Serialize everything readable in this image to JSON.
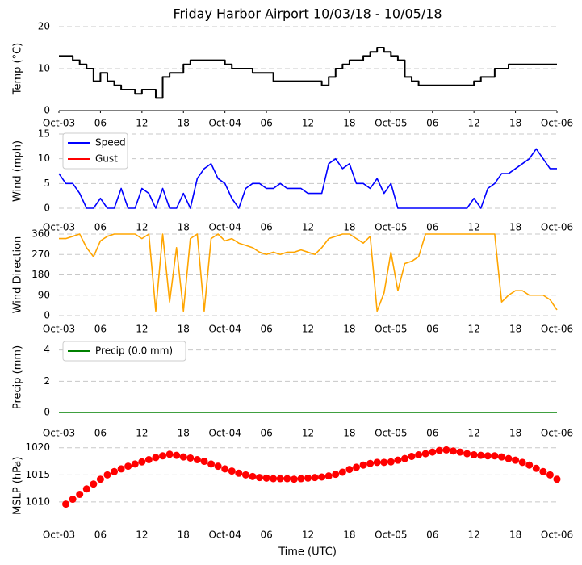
{
  "chart_data": [
    {
      "type": "line",
      "title": "Friday Harbor Airport 10/03/18 - 10/05/18",
      "ylabel": "Temp (°C)",
      "step": true,
      "x": [
        0,
        1,
        2,
        3,
        4,
        5,
        6,
        7,
        8,
        9,
        10,
        11,
        12,
        13,
        14,
        15,
        16,
        17,
        18,
        19,
        20,
        21,
        22,
        23,
        24,
        25,
        26,
        27,
        28,
        29,
        30,
        31,
        32,
        33,
        34,
        35,
        36,
        37,
        38,
        39,
        40,
        41,
        42,
        43,
        44,
        45,
        46,
        47,
        48,
        49,
        50,
        51,
        52,
        53,
        54,
        55,
        56,
        57,
        58,
        59,
        60,
        61,
        62,
        63,
        64,
        65,
        66,
        67,
        68,
        69,
        70,
        71,
        72
      ],
      "series": [
        {
          "name": "Temp",
          "color": "#000000",
          "values": [
            13,
            13,
            12,
            11,
            10,
            7,
            9,
            7,
            6,
            5,
            5,
            4,
            5,
            5,
            3,
            8,
            9,
            9,
            11,
            12,
            12,
            12,
            12,
            12,
            11,
            10,
            10,
            10,
            9,
            9,
            9,
            7,
            7,
            7,
            7,
            7,
            7,
            7,
            6,
            8,
            10,
            11,
            12,
            12,
            13,
            14,
            15,
            14,
            13,
            12,
            8,
            7,
            6,
            6,
            6,
            6,
            6,
            6,
            6,
            6,
            7,
            8,
            8,
            10,
            10,
            11,
            11,
            11,
            11,
            11,
            11,
            11,
            11
          ]
        }
      ],
      "xlim": [
        0,
        72
      ],
      "xticks": [
        {
          "value": 0,
          "label": "Oct-03"
        },
        {
          "value": 6,
          "label": "06"
        },
        {
          "value": 12,
          "label": "12"
        },
        {
          "value": 18,
          "label": "18"
        },
        {
          "value": 24,
          "label": "Oct-04"
        },
        {
          "value": 30,
          "label": "06"
        },
        {
          "value": 36,
          "label": "12"
        },
        {
          "value": 42,
          "label": "18"
        },
        {
          "value": 48,
          "label": "Oct-05"
        },
        {
          "value": 54,
          "label": "06"
        },
        {
          "value": 60,
          "label": "12"
        },
        {
          "value": 66,
          "label": "18"
        },
        {
          "value": 72,
          "label": "Oct-06"
        }
      ],
      "ylim": [
        0,
        20
      ],
      "yticks": [
        0,
        10,
        20
      ],
      "grid": true
    },
    {
      "type": "line",
      "ylabel": "Wind (mph)",
      "legend": "upper left",
      "x": [
        0,
        1,
        2,
        3,
        4,
        5,
        6,
        7,
        8,
        9,
        10,
        11,
        12,
        13,
        14,
        15,
        16,
        17,
        18,
        19,
        20,
        21,
        22,
        23,
        24,
        25,
        26,
        27,
        28,
        29,
        30,
        31,
        32,
        33,
        34,
        35,
        36,
        37,
        38,
        39,
        40,
        41,
        42,
        43,
        44,
        45,
        46,
        47,
        48,
        49,
        50,
        51,
        52,
        53,
        54,
        55,
        56,
        57,
        58,
        59,
        60,
        61,
        62,
        63,
        64,
        65,
        66,
        67,
        68,
        69,
        70,
        71,
        72
      ],
      "series": [
        {
          "name": "Speed",
          "color": "#0000ff",
          "values": [
            7,
            5,
            5,
            3,
            0,
            0,
            2,
            0,
            0,
            4,
            0,
            0,
            4,
            3,
            0,
            4,
            0,
            0,
            3,
            0,
            6,
            8,
            9,
            6,
            5,
            2,
            0,
            4,
            5,
            5,
            4,
            4,
            5,
            4,
            4,
            4,
            3,
            3,
            3,
            9,
            10,
            8,
            9,
            5,
            5,
            4,
            6,
            3,
            5,
            0,
            0,
            0,
            0,
            0,
            0,
            0,
            0,
            0,
            0,
            0,
            2,
            0,
            4,
            5,
            7,
            7,
            8,
            9,
            10,
            12,
            10,
            8,
            8
          ]
        },
        {
          "name": "Gust",
          "color": "#ff0000",
          "values": [
            null,
            null,
            null,
            null,
            null,
            null,
            null,
            null,
            null,
            null,
            null,
            null,
            null,
            null,
            null,
            null,
            null,
            null,
            null,
            null,
            null,
            null,
            null,
            null,
            null,
            null,
            null,
            null,
            null,
            null,
            null,
            null,
            null,
            null,
            null,
            null,
            null,
            null,
            null,
            null,
            null,
            null,
            null,
            null,
            null,
            null,
            null,
            null,
            null,
            null,
            null,
            null,
            null,
            null,
            null,
            null,
            null,
            null,
            null,
            null,
            null,
            null,
            null,
            null,
            null,
            null,
            null,
            null,
            null,
            null,
            null,
            null,
            null
          ]
        }
      ],
      "xlim": [
        0,
        72
      ],
      "xticks": [
        {
          "value": 0,
          "label": "Oct-03"
        },
        {
          "value": 6,
          "label": "06"
        },
        {
          "value": 12,
          "label": "12"
        },
        {
          "value": 18,
          "label": "18"
        },
        {
          "value": 24,
          "label": "Oct-04"
        },
        {
          "value": 30,
          "label": "06"
        },
        {
          "value": 36,
          "label": "12"
        },
        {
          "value": 42,
          "label": "18"
        },
        {
          "value": 48,
          "label": "Oct-05"
        },
        {
          "value": 54,
          "label": "06"
        },
        {
          "value": 60,
          "label": "12"
        },
        {
          "value": 66,
          "label": "18"
        },
        {
          "value": 72,
          "label": "Oct-06"
        }
      ],
      "ylim": [
        0,
        15
      ],
      "yticks": [
        0,
        5,
        10,
        15
      ],
      "grid": true
    },
    {
      "type": "line",
      "ylabel": "Wind Direction",
      "x": [
        0,
        1,
        2,
        3,
        4,
        5,
        6,
        7,
        8,
        9,
        10,
        11,
        12,
        13,
        14,
        15,
        16,
        17,
        18,
        19,
        20,
        21,
        22,
        23,
        24,
        25,
        26,
        27,
        28,
        29,
        30,
        31,
        32,
        33,
        34,
        35,
        36,
        37,
        38,
        39,
        40,
        41,
        42,
        43,
        44,
        45,
        46,
        47,
        48,
        49,
        50,
        51,
        52,
        53,
        54,
        55,
        56,
        57,
        58,
        59,
        60,
        61,
        62,
        63,
        64,
        65,
        66,
        67,
        68,
        69,
        70,
        71,
        72
      ],
      "series": [
        {
          "name": "Direction",
          "color": "#ffa500",
          "values": [
            340,
            340,
            350,
            360,
            300,
            260,
            330,
            350,
            360,
            360,
            360,
            360,
            340,
            360,
            20,
            360,
            60,
            300,
            20,
            340,
            360,
            20,
            340,
            360,
            330,
            340,
            320,
            310,
            300,
            280,
            270,
            280,
            270,
            280,
            280,
            290,
            280,
            270,
            300,
            340,
            350,
            360,
            360,
            340,
            320,
            350,
            20,
            100,
            280,
            110,
            230,
            240,
            260,
            360,
            360,
            360,
            360,
            360,
            360,
            360,
            360,
            360,
            360,
            360,
            60,
            90,
            110,
            110,
            90,
            90,
            90,
            70,
            25
          ]
        }
      ],
      "xlim": [
        0,
        72
      ],
      "xticks": [
        {
          "value": 0,
          "label": "Oct-03"
        },
        {
          "value": 6,
          "label": "06"
        },
        {
          "value": 12,
          "label": "12"
        },
        {
          "value": 18,
          "label": "18"
        },
        {
          "value": 24,
          "label": "Oct-04"
        },
        {
          "value": 30,
          "label": "06"
        },
        {
          "value": 36,
          "label": "12"
        },
        {
          "value": 42,
          "label": "18"
        },
        {
          "value": 48,
          "label": "Oct-05"
        },
        {
          "value": 54,
          "label": "06"
        },
        {
          "value": 60,
          "label": "12"
        },
        {
          "value": 66,
          "label": "18"
        },
        {
          "value": 72,
          "label": "Oct-06"
        }
      ],
      "ylim": [
        0,
        360
      ],
      "yticks": [
        0,
        90,
        180,
        270,
        360
      ],
      "grid": true
    },
    {
      "type": "line",
      "ylabel": "Precip (mm)",
      "legend": "upper left",
      "x": [
        0,
        1,
        2,
        3,
        4,
        5,
        6,
        7,
        8,
        9,
        10,
        11,
        12,
        13,
        14,
        15,
        16,
        17,
        18,
        19,
        20,
        21,
        22,
        23,
        24,
        25,
        26,
        27,
        28,
        29,
        30,
        31,
        32,
        33,
        34,
        35,
        36,
        37,
        38,
        39,
        40,
        41,
        42,
        43,
        44,
        45,
        46,
        47,
        48,
        49,
        50,
        51,
        52,
        53,
        54,
        55,
        56,
        57,
        58,
        59,
        60,
        61,
        62,
        63,
        64,
        65,
        66,
        67,
        68,
        69,
        70,
        71,
        72
      ],
      "series": [
        {
          "name": "Precip (0.0 mm)",
          "color": "#008000",
          "values": [
            0,
            0,
            0,
            0,
            0,
            0,
            0,
            0,
            0,
            0,
            0,
            0,
            0,
            0,
            0,
            0,
            0,
            0,
            0,
            0,
            0,
            0,
            0,
            0,
            0,
            0,
            0,
            0,
            0,
            0,
            0,
            0,
            0,
            0,
            0,
            0,
            0,
            0,
            0,
            0,
            0,
            0,
            0,
            0,
            0,
            0,
            0,
            0,
            0,
            0,
            0,
            0,
            0,
            0,
            0,
            0,
            0,
            0,
            0,
            0,
            0,
            0,
            0,
            0,
            0,
            0,
            0,
            0,
            0,
            0,
            0,
            0,
            0
          ]
        }
      ],
      "xlim": [
        0,
        72
      ],
      "xticks": [
        {
          "value": 0,
          "label": "Oct-03"
        },
        {
          "value": 6,
          "label": "06"
        },
        {
          "value": 12,
          "label": "12"
        },
        {
          "value": 18,
          "label": "18"
        },
        {
          "value": 24,
          "label": "Oct-04"
        },
        {
          "value": 30,
          "label": "06"
        },
        {
          "value": 36,
          "label": "12"
        },
        {
          "value": 42,
          "label": "18"
        },
        {
          "value": 48,
          "label": "Oct-05"
        },
        {
          "value": 54,
          "label": "06"
        },
        {
          "value": 60,
          "label": "12"
        },
        {
          "value": 66,
          "label": "18"
        },
        {
          "value": 72,
          "label": "Oct-06"
        }
      ],
      "ylim": [
        0,
        4.5
      ],
      "yticks": [
        0,
        2,
        4
      ],
      "grid": true
    },
    {
      "type": "scatter",
      "ylabel": "MSLP (hPa)",
      "xlabel": "Time (UTC)",
      "x": [
        1,
        2,
        3,
        4,
        5,
        6,
        7,
        8,
        9,
        10,
        11,
        12,
        13,
        14,
        15,
        16,
        17,
        18,
        19,
        20,
        21,
        22,
        23,
        24,
        25,
        26,
        27,
        28,
        29,
        30,
        31,
        32,
        33,
        34,
        35,
        36,
        37,
        38,
        39,
        40,
        41,
        42,
        43,
        44,
        45,
        46,
        47,
        48,
        49,
        50,
        51,
        52,
        53,
        54,
        55,
        56,
        57,
        58,
        59,
        60,
        61,
        62,
        63,
        64,
        65,
        66,
        67,
        68,
        69,
        70,
        71,
        72
      ],
      "series": [
        {
          "name": "MSLP",
          "color": "#ff0000",
          "values": [
            1009.6,
            1010.5,
            1011.4,
            1012.4,
            1013.3,
            1014.2,
            1015,
            1015.6,
            1016.1,
            1016.6,
            1017,
            1017.4,
            1017.8,
            1018.2,
            1018.5,
            1018.8,
            1018.6,
            1018.3,
            1018.1,
            1017.8,
            1017.5,
            1017,
            1016.6,
            1016.1,
            1015.7,
            1015.3,
            1015,
            1014.7,
            1014.5,
            1014.4,
            1014.3,
            1014.3,
            1014.3,
            1014.2,
            1014.3,
            1014.4,
            1014.5,
            1014.6,
            1014.8,
            1015.1,
            1015.5,
            1016,
            1016.4,
            1016.8,
            1017.1,
            1017.3,
            1017.3,
            1017.4,
            1017.7,
            1018,
            1018.4,
            1018.7,
            1018.9,
            1019.2,
            1019.5,
            1019.6,
            1019.4,
            1019.2,
            1018.9,
            1018.7,
            1018.6,
            1018.5,
            1018.5,
            1018.3,
            1018,
            1017.7,
            1017.3,
            1016.8,
            1016.2,
            1015.6,
            1015,
            1014.2
          ]
        }
      ],
      "xlim": [
        0,
        72
      ],
      "xticks": [
        {
          "value": 0,
          "label": "Oct-03"
        },
        {
          "value": 6,
          "label": "06"
        },
        {
          "value": 12,
          "label": "12"
        },
        {
          "value": 18,
          "label": "18"
        },
        {
          "value": 24,
          "label": "Oct-04"
        },
        {
          "value": 30,
          "label": "06"
        },
        {
          "value": 36,
          "label": "12"
        },
        {
          "value": 42,
          "label": "18"
        },
        {
          "value": 48,
          "label": "Oct-05"
        },
        {
          "value": 54,
          "label": "06"
        },
        {
          "value": 60,
          "label": "12"
        },
        {
          "value": 66,
          "label": "18"
        },
        {
          "value": 72,
          "label": "Oct-06"
        }
      ],
      "ylim": [
        1005,
        1021
      ],
      "yticks": [
        1010,
        1015,
        1020
      ],
      "grid": true
    }
  ]
}
